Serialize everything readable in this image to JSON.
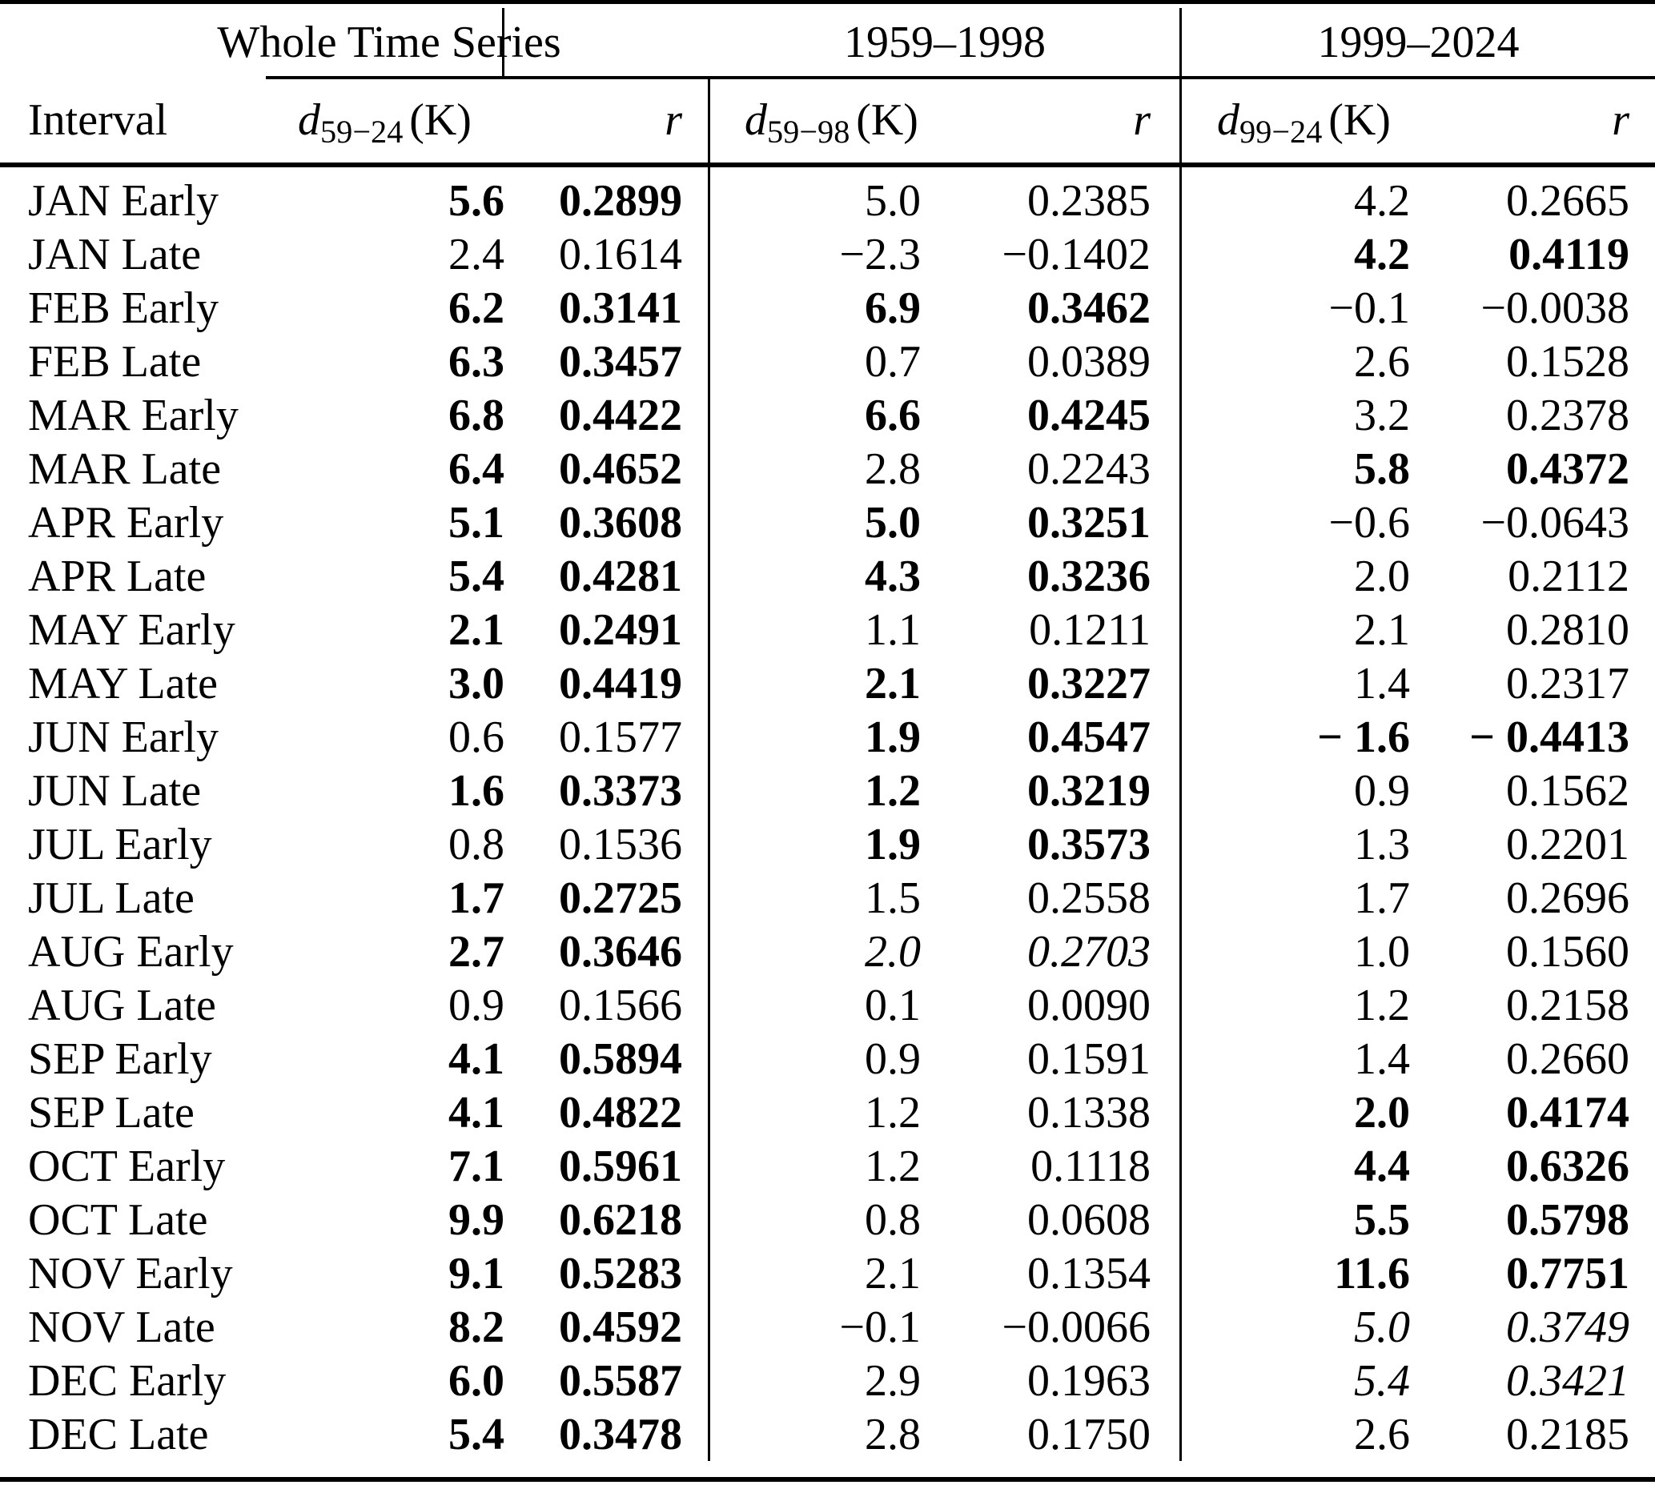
{
  "colors": {
    "text": "#000000",
    "background": "#ffffff",
    "rules": "#000000"
  },
  "table": {
    "section_headers": [
      "Whole Time Series",
      "1959–1998",
      "1999–2024"
    ],
    "col_headers": {
      "interval": "Interval",
      "d1": {
        "base": "d",
        "sub": "59−24",
        "unit": "(K)"
      },
      "r1": "r",
      "d2": {
        "base": "d",
        "sub": "59−98",
        "unit": "(K)"
      },
      "r2": "r",
      "d3": {
        "base": "d",
        "sub": "99−24",
        "unit": "(K)"
      },
      "r3": "r"
    },
    "rows": [
      {
        "interval": "JAN Early",
        "d1": "5.6",
        "r1": "0.2899",
        "s1": "bold",
        "d2": "5.0",
        "r2": "0.2385",
        "s2": "normal",
        "d3": "4.2",
        "r3": "0.2665",
        "s3": "normal"
      },
      {
        "interval": "JAN Late",
        "d1": "2.4",
        "r1": "0.1614",
        "s1": "normal",
        "d2": "−2.3",
        "r2": "−0.1402",
        "s2": "normal",
        "d3": "4.2",
        "r3": "0.4119",
        "s3": "bold"
      },
      {
        "interval": "FEB Early",
        "d1": "6.2",
        "r1": "0.3141",
        "s1": "bold",
        "d2": "6.9",
        "r2": "0.3462",
        "s2": "bold",
        "d3": "−0.1",
        "r3": "−0.0038",
        "s3": "normal"
      },
      {
        "interval": "FEB Late",
        "d1": "6.3",
        "r1": "0.3457",
        "s1": "bold",
        "d2": "0.7",
        "r2": "0.0389",
        "s2": "normal",
        "d3": "2.6",
        "r3": "0.1528",
        "s3": "normal"
      },
      {
        "interval": "MAR Early",
        "d1": "6.8",
        "r1": "0.4422",
        "s1": "bold",
        "d2": "6.6",
        "r2": "0.4245",
        "s2": "bold",
        "d3": "3.2",
        "r3": "0.2378",
        "s3": "normal"
      },
      {
        "interval": "MAR Late",
        "d1": "6.4",
        "r1": "0.4652",
        "s1": "bold",
        "d2": "2.8",
        "r2": "0.2243",
        "s2": "normal",
        "d3": "5.8",
        "r3": "0.4372",
        "s3": "bold"
      },
      {
        "interval": "APR Early",
        "d1": "5.1",
        "r1": "0.3608",
        "s1": "bold",
        "d2": "5.0",
        "r2": "0.3251",
        "s2": "bold",
        "d3": "−0.6",
        "r3": "−0.0643",
        "s3": "normal"
      },
      {
        "interval": "APR Late",
        "d1": "5.4",
        "r1": "0.4281",
        "s1": "bold",
        "d2": "4.3",
        "r2": "0.3236",
        "s2": "bold",
        "d3": "2.0",
        "r3": "0.2112",
        "s3": "normal"
      },
      {
        "interval": "MAY Early",
        "d1": "2.1",
        "r1": "0.2491",
        "s1": "bold",
        "d2": "1.1",
        "r2": "0.1211",
        "s2": "normal",
        "d3": "2.1",
        "r3": "0.2810",
        "s3": "normal"
      },
      {
        "interval": "MAY Late",
        "d1": "3.0",
        "r1": "0.4419",
        "s1": "bold",
        "d2": "2.1",
        "r2": "0.3227",
        "s2": "bold",
        "d3": "1.4",
        "r3": "0.2317",
        "s3": "normal"
      },
      {
        "interval": "JUN Early",
        "d1": "0.6",
        "r1": "0.1577",
        "s1": "normal",
        "d2": "1.9",
        "r2": "0.4547",
        "s2": "bold",
        "d3": "− 1.6",
        "r3": "− 0.4413",
        "s3": "bold"
      },
      {
        "interval": "JUN Late",
        "d1": "1.6",
        "r1": "0.3373",
        "s1": "bold",
        "d2": "1.2",
        "r2": "0.3219",
        "s2": "bold",
        "d3": "0.9",
        "r3": "0.1562",
        "s3": "normal"
      },
      {
        "interval": "JUL Early",
        "d1": "0.8",
        "r1": "0.1536",
        "s1": "normal",
        "d2": "1.9",
        "r2": "0.3573",
        "s2": "bold",
        "d3": "1.3",
        "r3": "0.2201",
        "s3": "normal"
      },
      {
        "interval": "JUL Late",
        "d1": "1.7",
        "r1": "0.2725",
        "s1": "bold",
        "d2": "1.5",
        "r2": "0.2558",
        "s2": "normal",
        "d3": "1.7",
        "r3": "0.2696",
        "s3": "normal"
      },
      {
        "interval": "AUG Early",
        "d1": "2.7",
        "r1": "0.3646",
        "s1": "bold",
        "d2": "2.0",
        "r2": "0.2703",
        "s2": "italic",
        "d3": "1.0",
        "r3": "0.1560",
        "s3": "normal"
      },
      {
        "interval": "AUG Late",
        "d1": "0.9",
        "r1": "0.1566",
        "s1": "normal",
        "d2": "0.1",
        "r2": "0.0090",
        "s2": "normal",
        "d3": "1.2",
        "r3": "0.2158",
        "s3": "normal"
      },
      {
        "interval": "SEP Early",
        "d1": "4.1",
        "r1": "0.5894",
        "s1": "bold",
        "d2": "0.9",
        "r2": "0.1591",
        "s2": "normal",
        "d3": "1.4",
        "r3": "0.2660",
        "s3": "normal"
      },
      {
        "interval": "SEP Late",
        "d1": "4.1",
        "r1": "0.4822",
        "s1": "bold",
        "d2": "1.2",
        "r2": "0.1338",
        "s2": "normal",
        "d3": "2.0",
        "r3": "0.4174",
        "s3": "bold"
      },
      {
        "interval": "OCT Early",
        "d1": "7.1",
        "r1": "0.5961",
        "s1": "bold",
        "d2": "1.2",
        "r2": "0.1118",
        "s2": "normal",
        "d3": "4.4",
        "r3": "0.6326",
        "s3": "bold"
      },
      {
        "interval": "OCT Late",
        "d1": "9.9",
        "r1": "0.6218",
        "s1": "bold",
        "d2": "0.8",
        "r2": "0.0608",
        "s2": "normal",
        "d3": "5.5",
        "r3": "0.5798",
        "s3": "bold"
      },
      {
        "interval": "NOV Early",
        "d1": "9.1",
        "r1": "0.5283",
        "s1": "bold",
        "d2": "2.1",
        "r2": "0.1354",
        "s2": "normal",
        "d3": "11.6",
        "r3": "0.7751",
        "s3": "bold"
      },
      {
        "interval": "NOV Late",
        "d1": "8.2",
        "r1": "0.4592",
        "s1": "bold",
        "d2": "−0.1",
        "r2": "−0.0066",
        "s2": "normal",
        "d3": "5.0",
        "r3": "0.3749",
        "s3": "italic"
      },
      {
        "interval": "DEC Early",
        "d1": "6.0",
        "r1": "0.5587",
        "s1": "bold",
        "d2": "2.9",
        "r2": "0.1963",
        "s2": "normal",
        "d3": "5.4",
        "r3": "0.3421",
        "s3": "italic"
      },
      {
        "interval": "DEC Late",
        "d1": "5.4",
        "r1": "0.3478",
        "s1": "bold",
        "d2": "2.8",
        "r2": "0.1750",
        "s2": "normal",
        "d3": "2.6",
        "r3": "0.2185",
        "s3": "normal"
      }
    ]
  }
}
